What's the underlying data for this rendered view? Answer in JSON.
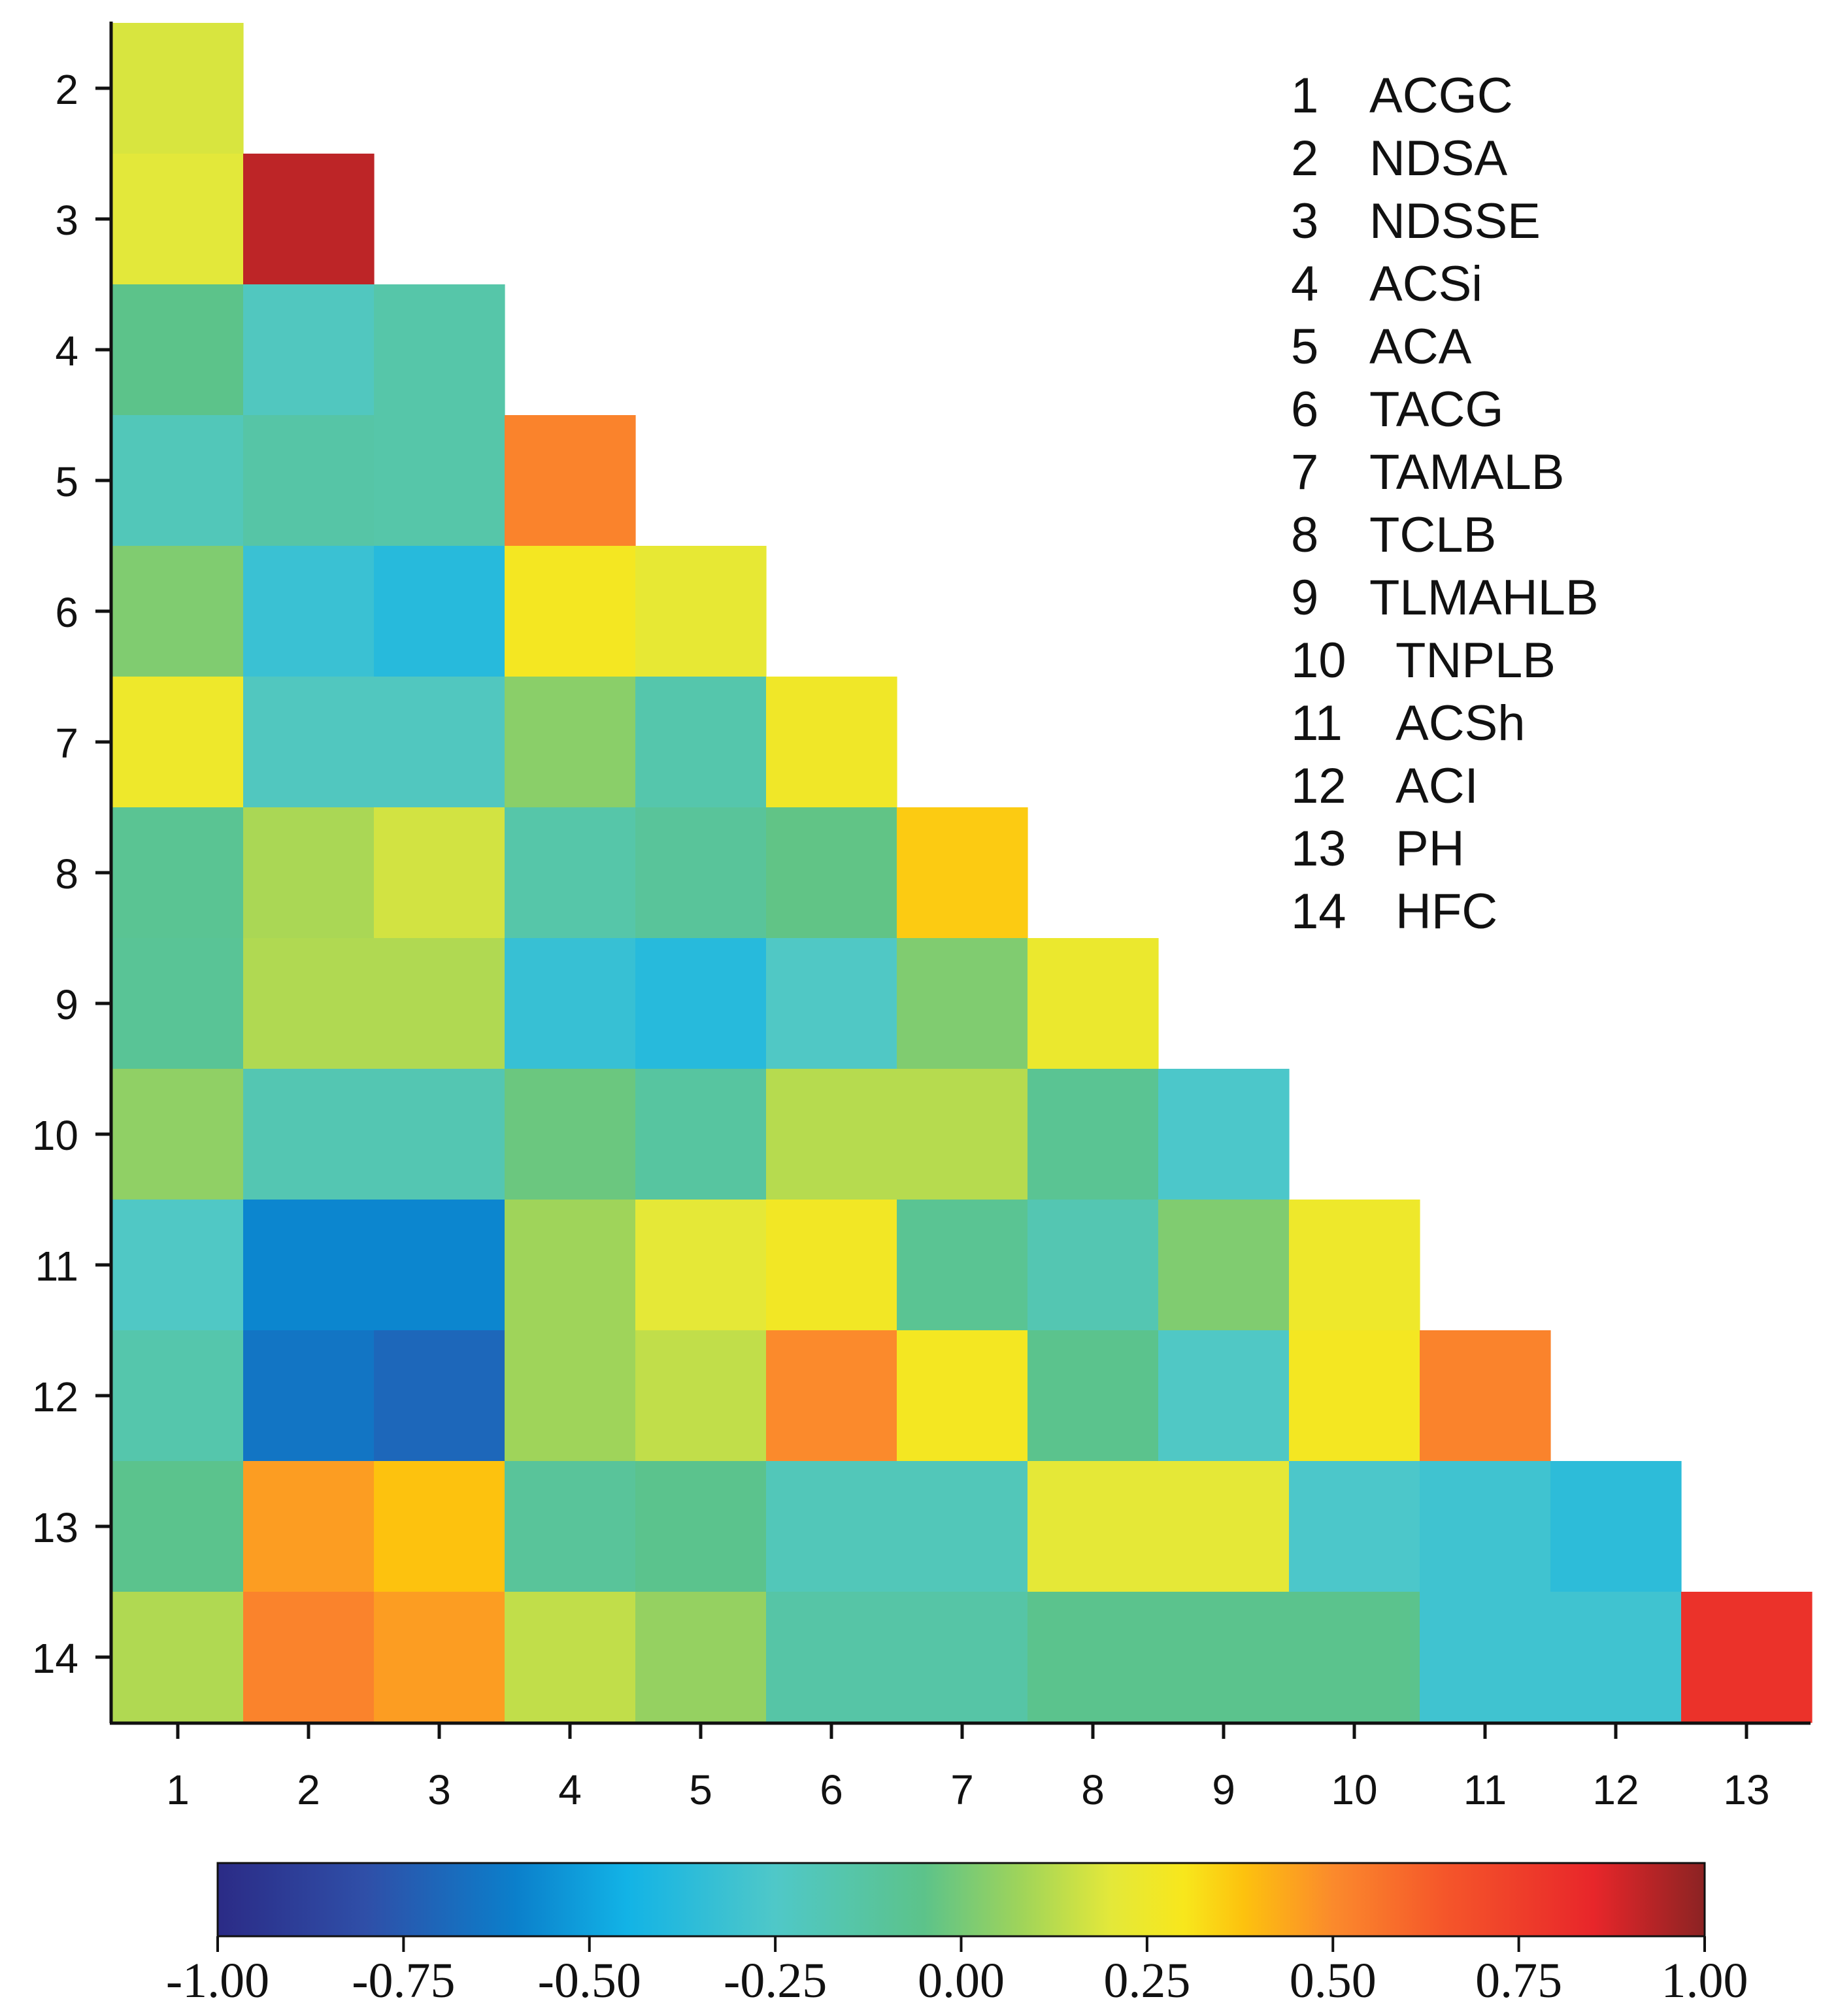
{
  "chart_data": {
    "type": "heatmap",
    "subtype": "lower-triangular correlation matrix",
    "x_categories": [
      "1",
      "2",
      "3",
      "4",
      "5",
      "6",
      "7",
      "8",
      "9",
      "10",
      "11",
      "12",
      "13"
    ],
    "y_categories": [
      "2",
      "3",
      "4",
      "5",
      "6",
      "7",
      "8",
      "9",
      "10",
      "11",
      "12",
      "13",
      "14"
    ],
    "values": [
      [
        0.18
      ],
      [
        0.2,
        0.92
      ],
      [
        -0.05,
        -0.22,
        -0.15
      ],
      [
        -0.2,
        -0.14,
        -0.15,
        0.52
      ],
      [
        0.02,
        -0.32,
        -0.38,
        0.28,
        0.22
      ],
      [
        0.25,
        -0.22,
        -0.22,
        0.04,
        -0.16,
        0.26
      ],
      [
        -0.08,
        0.1,
        0.17,
        -0.15,
        -0.1,
        -0.04,
        0.36
      ],
      [
        -0.09,
        0.11,
        0.11,
        -0.33,
        -0.38,
        -0.24,
        0.02,
        0.24
      ],
      [
        0.05,
        -0.18,
        -0.18,
        -0.02,
        -0.12,
        0.12,
        0.12,
        -0.08,
        -0.26
      ],
      [
        -0.24,
        -0.58,
        -0.58,
        0.08,
        0.21,
        0.27,
        -0.08,
        -0.18,
        0.02,
        0.25
      ],
      [
        -0.16,
        -0.64,
        -0.7,
        0.08,
        0.14,
        0.5,
        0.28,
        -0.06,
        -0.24,
        0.28,
        0.52
      ],
      [
        -0.06,
        0.46,
        0.38,
        -0.1,
        -0.06,
        -0.2,
        -0.2,
        0.21,
        0.21,
        -0.26,
        -0.3,
        -0.36
      ],
      [
        0.11,
        0.52,
        0.46,
        0.14,
        0.06,
        -0.14,
        -0.14,
        -0.06,
        -0.06,
        -0.06,
        -0.3,
        -0.3,
        0.8
      ]
    ],
    "colorbar": {
      "min": -1.0,
      "max": 1.0,
      "ticks": [
        "-1.00",
        "-0.75",
        "-0.50",
        "-0.25",
        "0.00",
        "0.25",
        "0.50",
        "0.75",
        "1.00"
      ]
    },
    "colormap_stops": [
      {
        "v": -1.0,
        "c": "#2b2b86"
      },
      {
        "v": -0.8,
        "c": "#2f4fa8"
      },
      {
        "v": -0.6,
        "c": "#0b7fcb"
      },
      {
        "v": -0.45,
        "c": "#12b3e6"
      },
      {
        "v": -0.25,
        "c": "#4fc8c8"
      },
      {
        "v": -0.05,
        "c": "#5cc38a"
      },
      {
        "v": 0.08,
        "c": "#9fd45a"
      },
      {
        "v": 0.2,
        "c": "#e3e83a"
      },
      {
        "v": 0.3,
        "c": "#f8e71c"
      },
      {
        "v": 0.38,
        "c": "#fdc20e"
      },
      {
        "v": 0.5,
        "c": "#fb8a2c"
      },
      {
        "v": 0.65,
        "c": "#f5562a"
      },
      {
        "v": 0.85,
        "c": "#e8262a"
      },
      {
        "v": 1.0,
        "c": "#8b2323"
      }
    ],
    "legend": [
      {
        "num": "1",
        "abbr": "ACGC"
      },
      {
        "num": "2",
        "abbr": "NDSA"
      },
      {
        "num": "3",
        "abbr": "NDSSE"
      },
      {
        "num": "4",
        "abbr": "ACSi"
      },
      {
        "num": "5",
        "abbr": "ACA"
      },
      {
        "num": "6",
        "abbr": "TACG"
      },
      {
        "num": "7",
        "abbr": "TAMALB"
      },
      {
        "num": "8",
        "abbr": "TCLB"
      },
      {
        "num": "9",
        "abbr": "TLMAHLB"
      },
      {
        "num": "10",
        "abbr": "TNPLB"
      },
      {
        "num": "11",
        "abbr": "ACSh"
      },
      {
        "num": "12",
        "abbr": "ACI"
      },
      {
        "num": "13",
        "abbr": "PH"
      },
      {
        "num": "14",
        "abbr": "HFC"
      }
    ],
    "legend_placement": "top-right",
    "grid": false
  }
}
